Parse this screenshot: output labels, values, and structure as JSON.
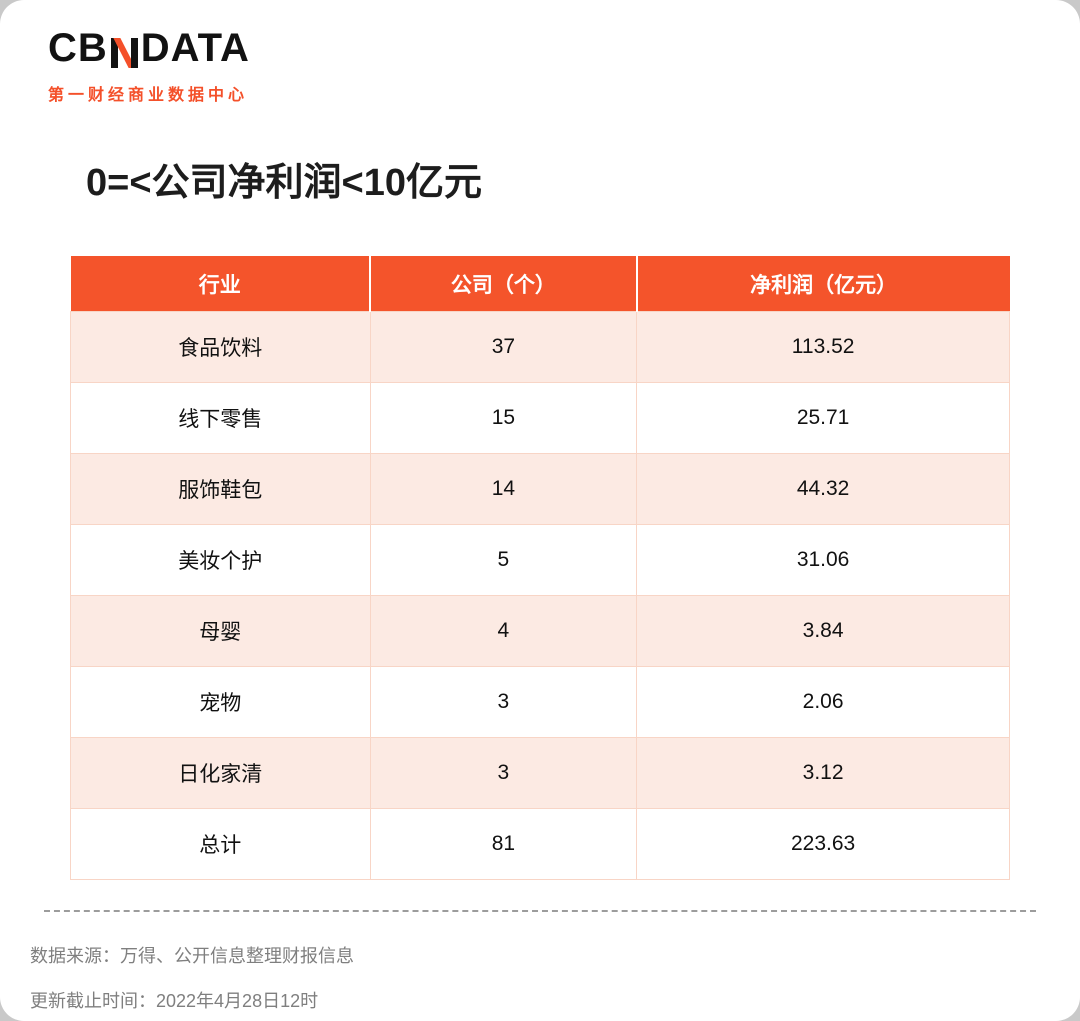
{
  "brand": {
    "logo_prefix": "CB",
    "logo_n": "N",
    "logo_suffix": "DATA",
    "tagline": "第一财经商业数据中心"
  },
  "page": {
    "title": "0=<公司净利润<10亿元"
  },
  "chart_data": {
    "type": "table",
    "title": "0=<公司净利润<10亿元",
    "columns": [
      "行业",
      "公司（个）",
      "净利润（亿元）"
    ],
    "rows": [
      [
        "食品饮料",
        "37",
        "113.52"
      ],
      [
        "线下零售",
        "15",
        "25.71"
      ],
      [
        "服饰鞋包",
        "14",
        "44.32"
      ],
      [
        "美妆个护",
        "5",
        "31.06"
      ],
      [
        "母婴",
        "4",
        "3.84"
      ],
      [
        "宠物",
        "3",
        "2.06"
      ],
      [
        "日化家清",
        "3",
        "3.12"
      ],
      [
        "总计",
        "81",
        "223.63"
      ]
    ]
  },
  "footer": {
    "source": "数据来源：万得、公开信息整理财报信息",
    "updated": "更新截止时间：2022年4月28日12时"
  },
  "colors": {
    "accent": "#F4502A",
    "header_bg": "#F4542B",
    "row_alt_bg": "#FCEAE3",
    "table_border": "#F8D5C6"
  }
}
